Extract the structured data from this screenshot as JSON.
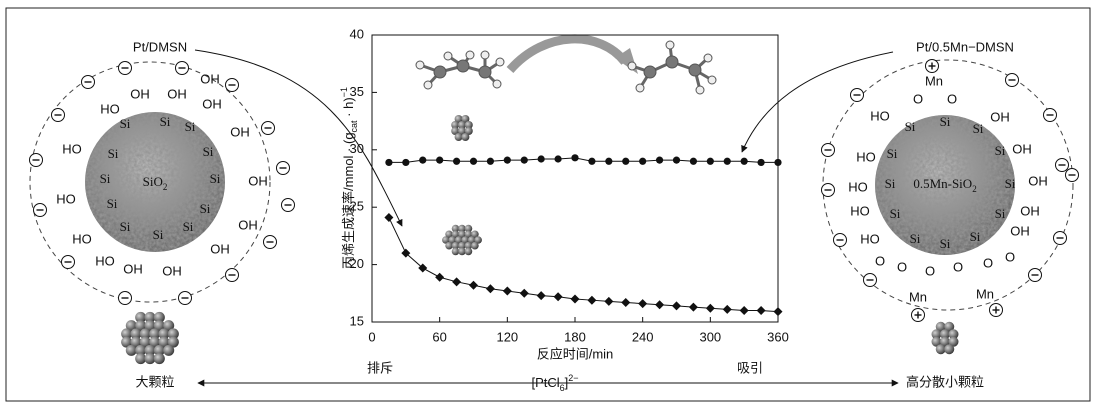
{
  "chart_data": {
    "type": "line",
    "xlabel": "反应时间/min",
    "ylabel": [
      "丙烯生成速率/mmol · (g",
      "cat",
      " · h)",
      "−1"
    ],
    "x": [
      15,
      30,
      45,
      60,
      75,
      90,
      105,
      120,
      135,
      150,
      165,
      180,
      195,
      210,
      225,
      240,
      255,
      270,
      285,
      300,
      315,
      330,
      345,
      360
    ],
    "series": [
      {
        "color": "#111111",
        "marker": "circle",
        "values": [
          28.9,
          28.9,
          29.1,
          29.1,
          29.0,
          29.0,
          29.0,
          29.1,
          29.1,
          29.2,
          29.2,
          29.3,
          29.0,
          29.0,
          29.0,
          29.0,
          29.1,
          29.1,
          29.0,
          29.0,
          29.0,
          29.0,
          28.9,
          28.9
        ]
      },
      {
        "color": "#111111",
        "marker": "diamond",
        "values": [
          24.1,
          21.0,
          19.7,
          18.9,
          18.5,
          18.2,
          17.9,
          17.7,
          17.5,
          17.3,
          17.2,
          17.0,
          16.9,
          16.8,
          16.7,
          16.6,
          16.5,
          16.4,
          16.3,
          16.2,
          16.1,
          16.0,
          16.0,
          15.9
        ]
      }
    ],
    "xlim": [
      0,
      360
    ],
    "xticks": [
      0,
      60,
      120,
      180,
      240,
      300,
      360
    ],
    "ylim": [
      15,
      40
    ],
    "yticks": [
      15,
      20,
      25,
      30,
      35,
      40
    ],
    "grid": false
  },
  "left_panel": {
    "title": "Pt/DMSN",
    "core": [
      "SiO",
      "2"
    ],
    "labels": [
      "OH",
      "OH",
      "OH",
      "OH",
      "HO",
      "HO",
      "HO",
      "HO",
      "HO",
      "OH",
      "OH",
      "OH",
      "OH",
      "OH",
      "OH",
      "Si",
      "Si",
      "Si",
      "Si",
      "Si",
      "Si",
      "Si",
      "Si",
      "Si",
      "Si",
      "Si",
      "Si"
    ]
  },
  "right_panel": {
    "title": "Pt/0.5Mn−DMSN",
    "core": [
      "0.5Mn-SiO",
      "2"
    ],
    "labels": [
      "Mn",
      "O",
      "O",
      "HO",
      "OH",
      "HO",
      "OH",
      "HO",
      "OH",
      "HO",
      "OH",
      "OH",
      "HO",
      "Si",
      "Si",
      "Si",
      "Si",
      "Si",
      "Si",
      "Si",
      "Si",
      "Si",
      "Si",
      "Si",
      "Si",
      "O",
      "O",
      "O",
      "O",
      "O",
      "O",
      "Mn",
      "Mn"
    ]
  },
  "bottom_bar": {
    "left": "大颗粒",
    "repel": "排斥",
    "ion": [
      "[PtCl",
      "6",
      "]",
      "2−"
    ],
    "attract": "吸引",
    "right": "高分散小颗粒"
  }
}
